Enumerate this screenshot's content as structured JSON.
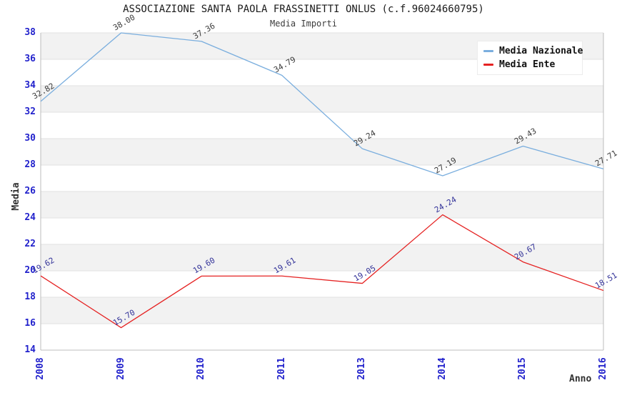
{
  "chart_data": {
    "type": "line",
    "title": "ASSOCIAZIONE SANTA PAOLA FRASSINETTI ONLUS (c.f.96024660795)",
    "subtitle": "Media Importi",
    "xlabel": "Anno",
    "ylabel": "Media",
    "categories": [
      "2008",
      "2009",
      "2010",
      "2011",
      "2013",
      "2014",
      "2015",
      "2016"
    ],
    "ylim": [
      14,
      38
    ],
    "y_ticks": [
      14,
      16,
      18,
      20,
      22,
      24,
      26,
      28,
      30,
      32,
      34,
      36,
      38
    ],
    "grid": "horizontal-bands",
    "legend_position": "top-right",
    "series": [
      {
        "name": "Media Nazionale",
        "color": "#7aaede",
        "label_color": "#3c3c3c",
        "values": [
          32.82,
          38.0,
          37.36,
          34.79,
          29.24,
          27.19,
          29.43,
          27.71
        ],
        "labels": [
          "32.82",
          "38.00",
          "37.36",
          "34.79",
          "29.24",
          "27.19",
          "29.43",
          "27.71"
        ]
      },
      {
        "name": "Media Ente",
        "color": "#e52222",
        "label_color": "#333399",
        "values": [
          19.62,
          15.7,
          19.6,
          19.61,
          19.05,
          24.24,
          20.67,
          18.51
        ],
        "labels": [
          "19.62",
          "15.70",
          "19.60",
          "19.61",
          "19.05",
          "24.24",
          "20.67",
          "18.51"
        ]
      }
    ],
    "style": {
      "band_fill": "#f2f2f2",
      "band_white": "#ffffff",
      "gridline_color": "#e2e2e2",
      "axis_color": "#bcbcbc",
      "tick_label_color": "#2222cc"
    }
  }
}
